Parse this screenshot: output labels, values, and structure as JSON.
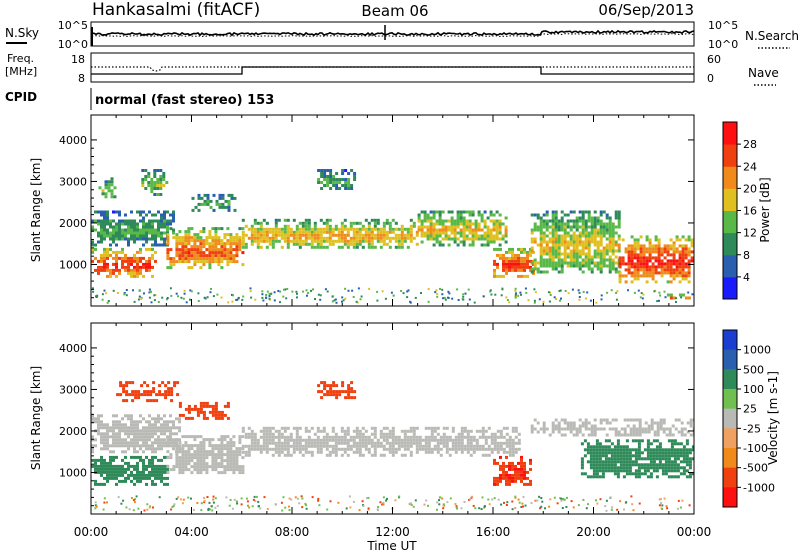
{
  "header": {
    "station": "Hankasalmi (fitACF)",
    "beam": "Beam 06",
    "date": "06/Sep/2013"
  },
  "noise_panel": {
    "left_label": "N.Sky",
    "right_label": "N.Search",
    "left_ticks": [
      "10^5",
      "10^0"
    ],
    "right_ticks": [
      "10^5",
      "10^0"
    ]
  },
  "freq_panel": {
    "left_label_line1": "Freq.",
    "left_label_line2": "[MHz]",
    "right_label": "Nave",
    "left_ticks": [
      "18",
      "8"
    ],
    "right_ticks": [
      "60",
      "0"
    ]
  },
  "cpid": {
    "label": "CPID",
    "mode": "normal (fast stereo) 153"
  },
  "x_axis": {
    "label": "Time UT",
    "ticks": [
      "00:00",
      "04:00",
      "08:00",
      "12:00",
      "16:00",
      "20:00",
      "00:00"
    ]
  },
  "colors": {
    "power_scale": [
      "#1a1aff",
      "#2a5fb0",
      "#2e8a58",
      "#58b848",
      "#e0c020",
      "#f08a1a",
      "#f04010",
      "#ff1010"
    ],
    "velocity_scale": [
      "#ff1010",
      "#f04010",
      "#f08a1a",
      "#f0a060",
      "#b9b9b5",
      "#70c050",
      "#2e8a58",
      "#2a5fb0",
      "#1a3fd0"
    ],
    "ground_scatter": "#b9b9b5"
  },
  "chart_data": [
    {
      "type": "heatmap",
      "name": "power",
      "xlabel": "Time UT",
      "ylabel": "Slant Range [km]",
      "xlim": [
        0,
        24
      ],
      "ylim": [
        0,
        4600
      ],
      "yticks": [
        "1000",
        "2000",
        "3000",
        "4000"
      ],
      "colorbar_label": "Power [dB]",
      "colorbar_ticks": [
        "4",
        "8",
        "12",
        "16",
        "20",
        "24",
        "28"
      ],
      "colorbar_range": [
        0,
        32
      ],
      "bands": [
        {
          "t0": 0.0,
          "t1": 2.6,
          "r0": 700,
          "r1": 1400,
          "db": 29
        },
        {
          "t0": 0.0,
          "t1": 3.3,
          "r0": 1500,
          "r1": 2300,
          "db": 13
        },
        {
          "t0": 0.3,
          "t1": 1.0,
          "r0": 2600,
          "r1": 3100,
          "db": 15
        },
        {
          "t0": 2.0,
          "t1": 3.0,
          "r0": 2700,
          "r1": 3300,
          "db": 15
        },
        {
          "t0": 3.0,
          "t1": 6.0,
          "r0": 900,
          "r1": 1900,
          "db": 26
        },
        {
          "t0": 4.0,
          "t1": 5.7,
          "r0": 2300,
          "r1": 2700,
          "db": 12
        },
        {
          "t0": 6.0,
          "t1": 13.0,
          "r0": 1400,
          "r1": 2100,
          "db": 21
        },
        {
          "t0": 9.0,
          "t1": 10.5,
          "r0": 2800,
          "r1": 3300,
          "db": 12
        },
        {
          "t0": 13.0,
          "t1": 16.5,
          "r0": 1500,
          "r1": 2300,
          "db": 20
        },
        {
          "t0": 16.0,
          "t1": 17.6,
          "r0": 700,
          "r1": 1400,
          "db": 28
        },
        {
          "t0": 17.5,
          "t1": 21.0,
          "r0": 800,
          "r1": 2300,
          "db": 19
        },
        {
          "t0": 21.0,
          "t1": 24.0,
          "r0": 600,
          "r1": 1700,
          "db": 29
        },
        {
          "t0": 22.8,
          "t1": 24.0,
          "r0": 200,
          "r1": 300,
          "db": 28
        }
      ]
    },
    {
      "type": "heatmap",
      "name": "velocity",
      "xlabel": "Time UT",
      "ylabel": "Slant Range [km]",
      "xlim": [
        0,
        24
      ],
      "ylim": [
        0,
        4600
      ],
      "yticks": [
        "1000",
        "2000",
        "3000",
        "4000"
      ],
      "colorbar_label": "Velocity [m s-1]",
      "colorbar_ticks": [
        "1000",
        "500",
        "100",
        "25",
        "-25",
        "-100",
        "-500",
        "-1000"
      ],
      "bands": [
        {
          "t0": 0.0,
          "t1": 3.5,
          "r0": 1500,
          "r1": 2400,
          "v": 0
        },
        {
          "t0": 0.0,
          "t1": 3.0,
          "r0": 700,
          "r1": 1400,
          "v": 200
        },
        {
          "t0": 1.0,
          "t1": 3.5,
          "r0": 2700,
          "r1": 3200,
          "v": -300
        },
        {
          "t0": 3.5,
          "t1": 5.5,
          "r0": 2300,
          "r1": 2700,
          "v": -250
        },
        {
          "t0": 3.0,
          "t1": 6.0,
          "r0": 1000,
          "r1": 1900,
          "v": 0
        },
        {
          "t0": 6.0,
          "t1": 17.0,
          "r0": 1400,
          "r1": 2100,
          "v": 0
        },
        {
          "t0": 9.0,
          "t1": 10.5,
          "r0": 2800,
          "r1": 3200,
          "v": -250
        },
        {
          "t0": 16.0,
          "t1": 17.5,
          "r0": 700,
          "r1": 1400,
          "v": -400
        },
        {
          "t0": 17.5,
          "t1": 24.0,
          "r0": 1900,
          "r1": 2300,
          "v": 0
        },
        {
          "t0": 19.5,
          "t1": 24.0,
          "r0": 900,
          "r1": 1800,
          "v": 300
        }
      ]
    }
  ]
}
